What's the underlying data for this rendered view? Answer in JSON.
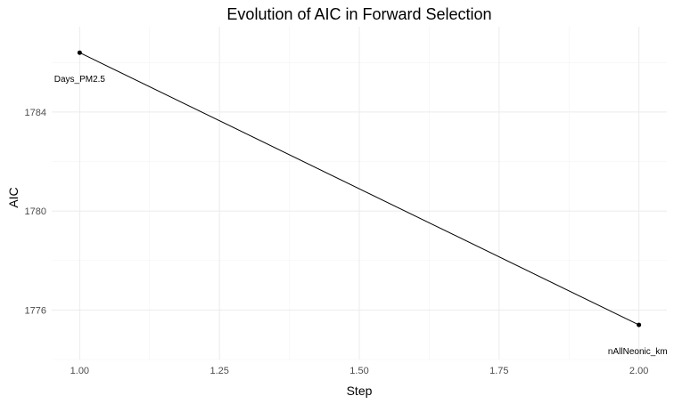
{
  "chart_data": {
    "type": "line",
    "title": "Evolution of AIC in Forward Selection",
    "xlabel": "Step",
    "ylabel": "AIC",
    "xlim": [
      0.95,
      2.05
    ],
    "ylim": [
      1774.0,
      1787.45
    ],
    "x_ticks": [
      "1.00",
      "1.25",
      "1.50",
      "1.75",
      "2.00"
    ],
    "y_ticks": [
      "1776",
      "1780",
      "1784"
    ],
    "grid": true,
    "legend": "none",
    "series": [
      {
        "x": [
          1.0,
          2.0
        ],
        "y": [
          1786.4,
          1775.4
        ],
        "labels": [
          "Days_PM2.5",
          "nAllNeonic_km"
        ]
      }
    ],
    "line_color": "#000000",
    "point_color": "#000000"
  }
}
